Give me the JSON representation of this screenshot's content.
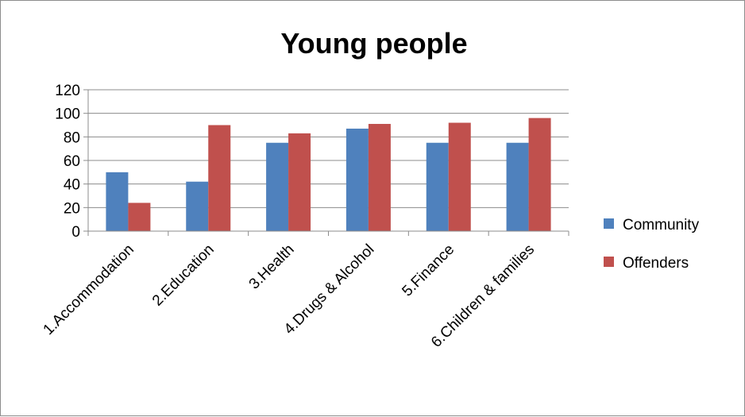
{
  "chart_data": {
    "type": "bar",
    "title": "Young people",
    "xlabel": "",
    "ylabel": "",
    "categories": [
      "1.Accommodation",
      "2.Education",
      "3.Health",
      "4.Drugs & Alcohol",
      "5.Finance",
      "6.Children & families"
    ],
    "series": [
      {
        "name": "Community",
        "color": "#4f81bd",
        "values": [
          50,
          42,
          75,
          87,
          75,
          75
        ]
      },
      {
        "name": "Offenders",
        "color": "#c0504d",
        "values": [
          24,
          90,
          83,
          91,
          92,
          96
        ]
      }
    ],
    "ylim": [
      0,
      120
    ],
    "yticks": [
      0,
      20,
      40,
      60,
      80,
      100,
      120
    ],
    "grid": true,
    "legend": "right"
  }
}
